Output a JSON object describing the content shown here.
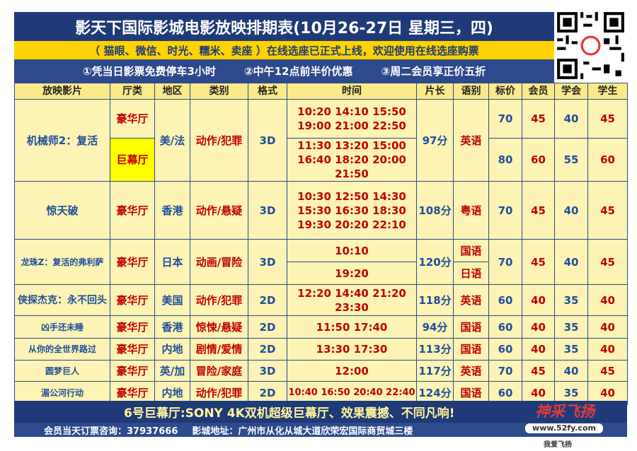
{
  "header": {
    "title": "影天下国际影城电影放映排期表(10月26-27日 星期三，四)",
    "notice": "（ 猫眼、微信、时光、糯米、卖座 ）在线选座已正式上线，欢迎使用在线选座购票",
    "perks": [
      "①凭当日影票免费停车3小时",
      "②中午12点前半价优惠",
      "③周二会员享正价五折"
    ]
  },
  "table": {
    "columns": [
      "放映影片",
      "厅类",
      "地区",
      "类别",
      "格式",
      "时间",
      "片长",
      "语别",
      "标价",
      "会员",
      "学会",
      "学生"
    ],
    "movies": [
      {
        "title": "机械师2：复活",
        "halls": [
          "豪华厅",
          "巨幕厅"
        ],
        "region": "美/法",
        "genre": "动作/犯罪",
        "format": "3D",
        "times": [
          [
            "10:20 14:10 15:50",
            "19:00 21:00 22:50"
          ],
          [
            "11:30 13:20 15:00",
            "16:40 18:20 20:00",
            "21:50"
          ]
        ],
        "length": "97分",
        "language": "英语",
        "prices": [
          [
            "70",
            "45",
            "40",
            "45"
          ],
          [
            "80",
            "60",
            "55",
            "60"
          ]
        ]
      },
      {
        "title": "惊天破",
        "hall": "豪华厅",
        "region": "香港",
        "genre": "动作/悬疑",
        "format": "3D",
        "times": [
          "10:30 12:50 14:30",
          "15:30 16:30 18:30",
          "19:30 20:20 22:10"
        ],
        "length": "108分",
        "language": "粤语",
        "prices": [
          "70",
          "45",
          "40",
          "45"
        ]
      },
      {
        "title": "龙珠Z：复活的弗利萨",
        "hall": "豪华厅",
        "region": "日本",
        "genre": "动画/冒险",
        "format": "3D",
        "times": [
          "10:10",
          "19:20"
        ],
        "length": "120分",
        "languages": [
          "国语",
          "日语"
        ],
        "prices": [
          "70",
          "45",
          "40",
          "45"
        ]
      },
      {
        "title": "侠探杰克：永不回头",
        "hall": "豪华厅",
        "region": "美国",
        "genre": "动作/犯罪",
        "format": "2D",
        "times": [
          "12:20 14:40 21:20",
          "23:30"
        ],
        "length": "118分",
        "language": "英语",
        "prices": [
          "60",
          "40",
          "35",
          "40"
        ]
      },
      {
        "title": "凶手还未睡",
        "hall": "豪华厅",
        "region": "香港",
        "genre": "惊悚/悬疑",
        "format": "2D",
        "times": [
          "11:50 17:40"
        ],
        "length": "94分",
        "language": "国语",
        "prices": [
          "60",
          "40",
          "35",
          "40"
        ]
      },
      {
        "title": "从你的全世界路过",
        "hall": "豪华厅",
        "region": "内地",
        "genre": "剧情/爱情",
        "format": "2D",
        "times": [
          "13:30 17:30"
        ],
        "length": "113分",
        "language": "国语",
        "prices": [
          "60",
          "40",
          "35",
          "40"
        ]
      },
      {
        "title": "圆梦巨人",
        "hall": "豪华厅",
        "region": "英/加",
        "genre": "冒险/家庭",
        "format": "3D",
        "times": [
          "12:00"
        ],
        "length": "117分",
        "language": "英语",
        "prices": [
          "70",
          "45",
          "40",
          "45"
        ]
      },
      {
        "title": "湄公河行动",
        "hall": "豪华厅",
        "region": "内地",
        "genre": "动作/犯罪",
        "format": "2D",
        "times": [
          "10:40 16:50 20:40 22:40"
        ],
        "length": "124分",
        "language": "国语",
        "prices": [
          "60",
          "40",
          "35",
          "40"
        ]
      }
    ]
  },
  "footer": {
    "highlight": "6号巨幕厅:SONY 4K双机超级巨幕厅、效果震撼、不同凡响!",
    "hotline": "会员当天订票咨询：37937666",
    "address": "影城地址：广州市从化从城大道欣荣宏国际商贸城三楼",
    "logo": "神采飞扬",
    "site": "www.52fy.com",
    "slogan": "我爱飞扬"
  }
}
